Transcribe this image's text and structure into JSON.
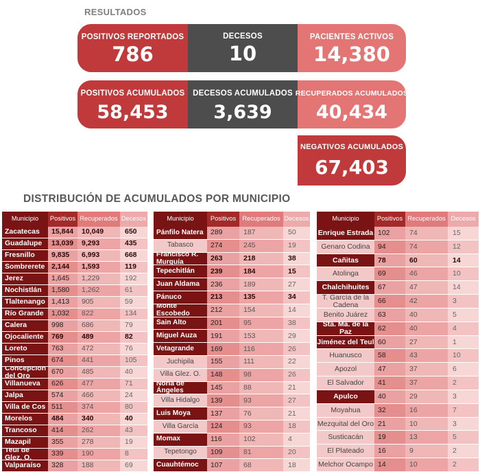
{
  "resultados_title": "RESULTADOS",
  "cards": {
    "positivos_reportados": {
      "label": "POSITIVOS REPORTADOS",
      "value": "786"
    },
    "decesos": {
      "label": "DECESOS",
      "value": "10"
    },
    "pacientes_activos": {
      "label": "PACIENTES ACTIVOS",
      "value": "14,380"
    },
    "positivos_acumulados": {
      "label": "POSITIVOS ACUMULADOS",
      "value": "58,453"
    },
    "decesos_acumulados": {
      "label": "DECESOS ACUMULADOS",
      "value": "3,639"
    },
    "recuperados_acumulados": {
      "label": "RECUPERADOS ACUMULADOS",
      "value": "40,434"
    },
    "negativos_acumulados": {
      "label": "NEGATIVOS ACUMULADOS",
      "value": "67,403"
    }
  },
  "distribucion_title": "DISTRIBUCIÓN DE ACUMULADOS POR MUNICIPIO",
  "headers": [
    "Municipio",
    "Positivos",
    "Recuperados",
    "Decesos"
  ],
  "colors": {
    "dark": "#7a1414",
    "red": "#c0393b",
    "gray": "#4d4d4d",
    "pink": "#e37575"
  },
  "table1": [
    {
      "m": "Zacatecas",
      "p": "15,844",
      "r": "10,049",
      "d": "650",
      "b": true
    },
    {
      "m": "Guadalupe",
      "p": "13,039",
      "r": "9,293",
      "d": "435",
      "b": true
    },
    {
      "m": "Fresnillo",
      "p": "9,835",
      "r": "6,993",
      "d": "668",
      "b": true
    },
    {
      "m": "Sombrerete",
      "p": "2,144",
      "r": "1,593",
      "d": "119",
      "b": true
    },
    {
      "m": "Jerez",
      "p": "1,645",
      "r": "1,229",
      "d": "192",
      "b": false
    },
    {
      "m": "Nochistlán",
      "p": "1,580",
      "r": "1,262",
      "d": "61",
      "b": false
    },
    {
      "m": "Tlaltenango",
      "p": "1,413",
      "r": "905",
      "d": "59",
      "b": false
    },
    {
      "m": "Río Grande",
      "p": "1,032",
      "r": "822",
      "d": "134",
      "b": false
    },
    {
      "m": "Calera",
      "p": "998",
      "r": "686",
      "d": "79",
      "b": false
    },
    {
      "m": "Ojocaliente",
      "p": "769",
      "r": "489",
      "d": "82",
      "b": true
    },
    {
      "m": "Loreto",
      "p": "763",
      "r": "472",
      "d": "76",
      "b": false
    },
    {
      "m": "Pinos",
      "p": "674",
      "r": "441",
      "d": "105",
      "b": false
    },
    {
      "m": "Concepción del Oro",
      "p": "670",
      "r": "485",
      "d": "40",
      "b": false
    },
    {
      "m": "Villanueva",
      "p": "626",
      "r": "477",
      "d": "71",
      "b": false
    },
    {
      "m": "Jalpa",
      "p": "574",
      "r": "466",
      "d": "24",
      "b": false
    },
    {
      "m": "Villa de Cos",
      "p": "511",
      "r": "374",
      "d": "80",
      "b": false
    },
    {
      "m": "Morelos",
      "p": "484",
      "r": "340",
      "d": "40",
      "b": true
    },
    {
      "m": "Trancoso",
      "p": "414",
      "r": "262",
      "d": "43",
      "b": false
    },
    {
      "m": "Mazapil",
      "p": "355",
      "r": "278",
      "d": "19",
      "b": false
    },
    {
      "m": "Teúl de Glez. O.",
      "p": "339",
      "r": "190",
      "d": "8",
      "b": false
    },
    {
      "m": "Valparaíso",
      "p": "328",
      "r": "188",
      "d": "69",
      "b": false
    }
  ],
  "table2": [
    {
      "m": "Pánfilo Natera",
      "p": "289",
      "r": "187",
      "d": "50",
      "b": false,
      "nb": false
    },
    {
      "m": "Tabasco",
      "p": "274",
      "r": "245",
      "d": "19",
      "b": false,
      "nb": true
    },
    {
      "m": "Francisco R. Murguía",
      "p": "263",
      "r": "218",
      "d": "38",
      "b": true,
      "nb": false
    },
    {
      "m": "Tepechitlán",
      "p": "239",
      "r": "184",
      "d": "15",
      "b": true,
      "nb": false
    },
    {
      "m": "Juan Aldama",
      "p": "236",
      "r": "189",
      "d": "27",
      "b": false,
      "nb": false
    },
    {
      "m": "Pánuco",
      "p": "213",
      "r": "135",
      "d": "34",
      "b": true,
      "nb": false
    },
    {
      "m": "Monte Escobedo",
      "p": "212",
      "r": "154",
      "d": "14",
      "b": false,
      "nb": false
    },
    {
      "m": "Sain Alto",
      "p": "201",
      "r": "95",
      "d": "38",
      "b": false,
      "nb": false
    },
    {
      "m": "Miguel Auza",
      "p": "191",
      "r": "153",
      "d": "29",
      "b": false,
      "nb": false
    },
    {
      "m": "Vetagrande",
      "p": "169",
      "r": "116",
      "d": "26",
      "b": false,
      "nb": false
    },
    {
      "m": "Juchipila",
      "p": "155",
      "r": "111",
      "d": "22",
      "b": false,
      "nb": true
    },
    {
      "m": "Villa Glez. O.",
      "p": "148",
      "r": "98",
      "d": "26",
      "b": false,
      "nb": true
    },
    {
      "m": "Noria de Ángeles",
      "p": "145",
      "r": "88",
      "d": "21",
      "b": false,
      "nb": false
    },
    {
      "m": "Villa Hidalgo",
      "p": "139",
      "r": "93",
      "d": "27",
      "b": false,
      "nb": true
    },
    {
      "m": "Luis Moya",
      "p": "137",
      "r": "76",
      "d": "21",
      "b": false,
      "nb": false
    },
    {
      "m": "Villa García",
      "p": "124",
      "r": "93",
      "d": "18",
      "b": false,
      "nb": true
    },
    {
      "m": "Momax",
      "p": "116",
      "r": "102",
      "d": "4",
      "b": false,
      "nb": false
    },
    {
      "m": "Tepetongo",
      "p": "109",
      "r": "81",
      "d": "20",
      "b": false,
      "nb": true
    },
    {
      "m": "Cuauhtémoc",
      "p": "107",
      "r": "68",
      "d": "18",
      "b": false,
      "nb": false
    }
  ],
  "table3": [
    {
      "m": "Enrique Estrada",
      "p": "102",
      "r": "74",
      "d": "15",
      "b": false,
      "nb": false
    },
    {
      "m": "Genaro Codina",
      "p": "94",
      "r": "74",
      "d": "12",
      "b": false,
      "nb": true
    },
    {
      "m": "Cañitas",
      "p": "78",
      "r": "60",
      "d": "14",
      "b": true,
      "nb": false
    },
    {
      "m": "Atolinga",
      "p": "69",
      "r": "46",
      "d": "10",
      "b": false,
      "nb": true
    },
    {
      "m": "Chalchihuites",
      "p": "67",
      "r": "47",
      "d": "14",
      "b": false,
      "nb": false
    },
    {
      "m": "T. García de la Cadena",
      "p": "66",
      "r": "42",
      "d": "3",
      "b": false,
      "nb": true
    },
    {
      "m": "Benito Juárez",
      "p": "63",
      "r": "40",
      "d": "5",
      "b": false,
      "nb": true
    },
    {
      "m": "Sta. Ma. de la Paz",
      "p": "62",
      "r": "40",
      "d": "4",
      "b": false,
      "nb": false
    },
    {
      "m": "Jiménez del Teul",
      "p": "60",
      "r": "27",
      "d": "1",
      "b": false,
      "nb": false
    },
    {
      "m": "Huanusco",
      "p": "58",
      "r": "43",
      "d": "10",
      "b": false,
      "nb": true
    },
    {
      "m": "Apozol",
      "p": "47",
      "r": "37",
      "d": "6",
      "b": false,
      "nb": true
    },
    {
      "m": "El Salvador",
      "p": "41",
      "r": "37",
      "d": "2",
      "b": false,
      "nb": true
    },
    {
      "m": "Apulco",
      "p": "40",
      "r": "29",
      "d": "3",
      "b": false,
      "nb": false
    },
    {
      "m": "Moyahua",
      "p": "32",
      "r": "16",
      "d": "7",
      "b": false,
      "nb": true
    },
    {
      "m": "Mezquital del Oro",
      "p": "21",
      "r": "10",
      "d": "3",
      "b": false,
      "nb": true
    },
    {
      "m": "Susticacán",
      "p": "19",
      "r": "13",
      "d": "5",
      "b": false,
      "nb": true
    },
    {
      "m": "El Plateado",
      "p": "16",
      "r": "9",
      "d": "2",
      "b": false,
      "nb": true
    },
    {
      "m": "Melchor Ocampo",
      "p": "14",
      "r": "10",
      "d": "2",
      "b": false,
      "nb": true
    }
  ]
}
